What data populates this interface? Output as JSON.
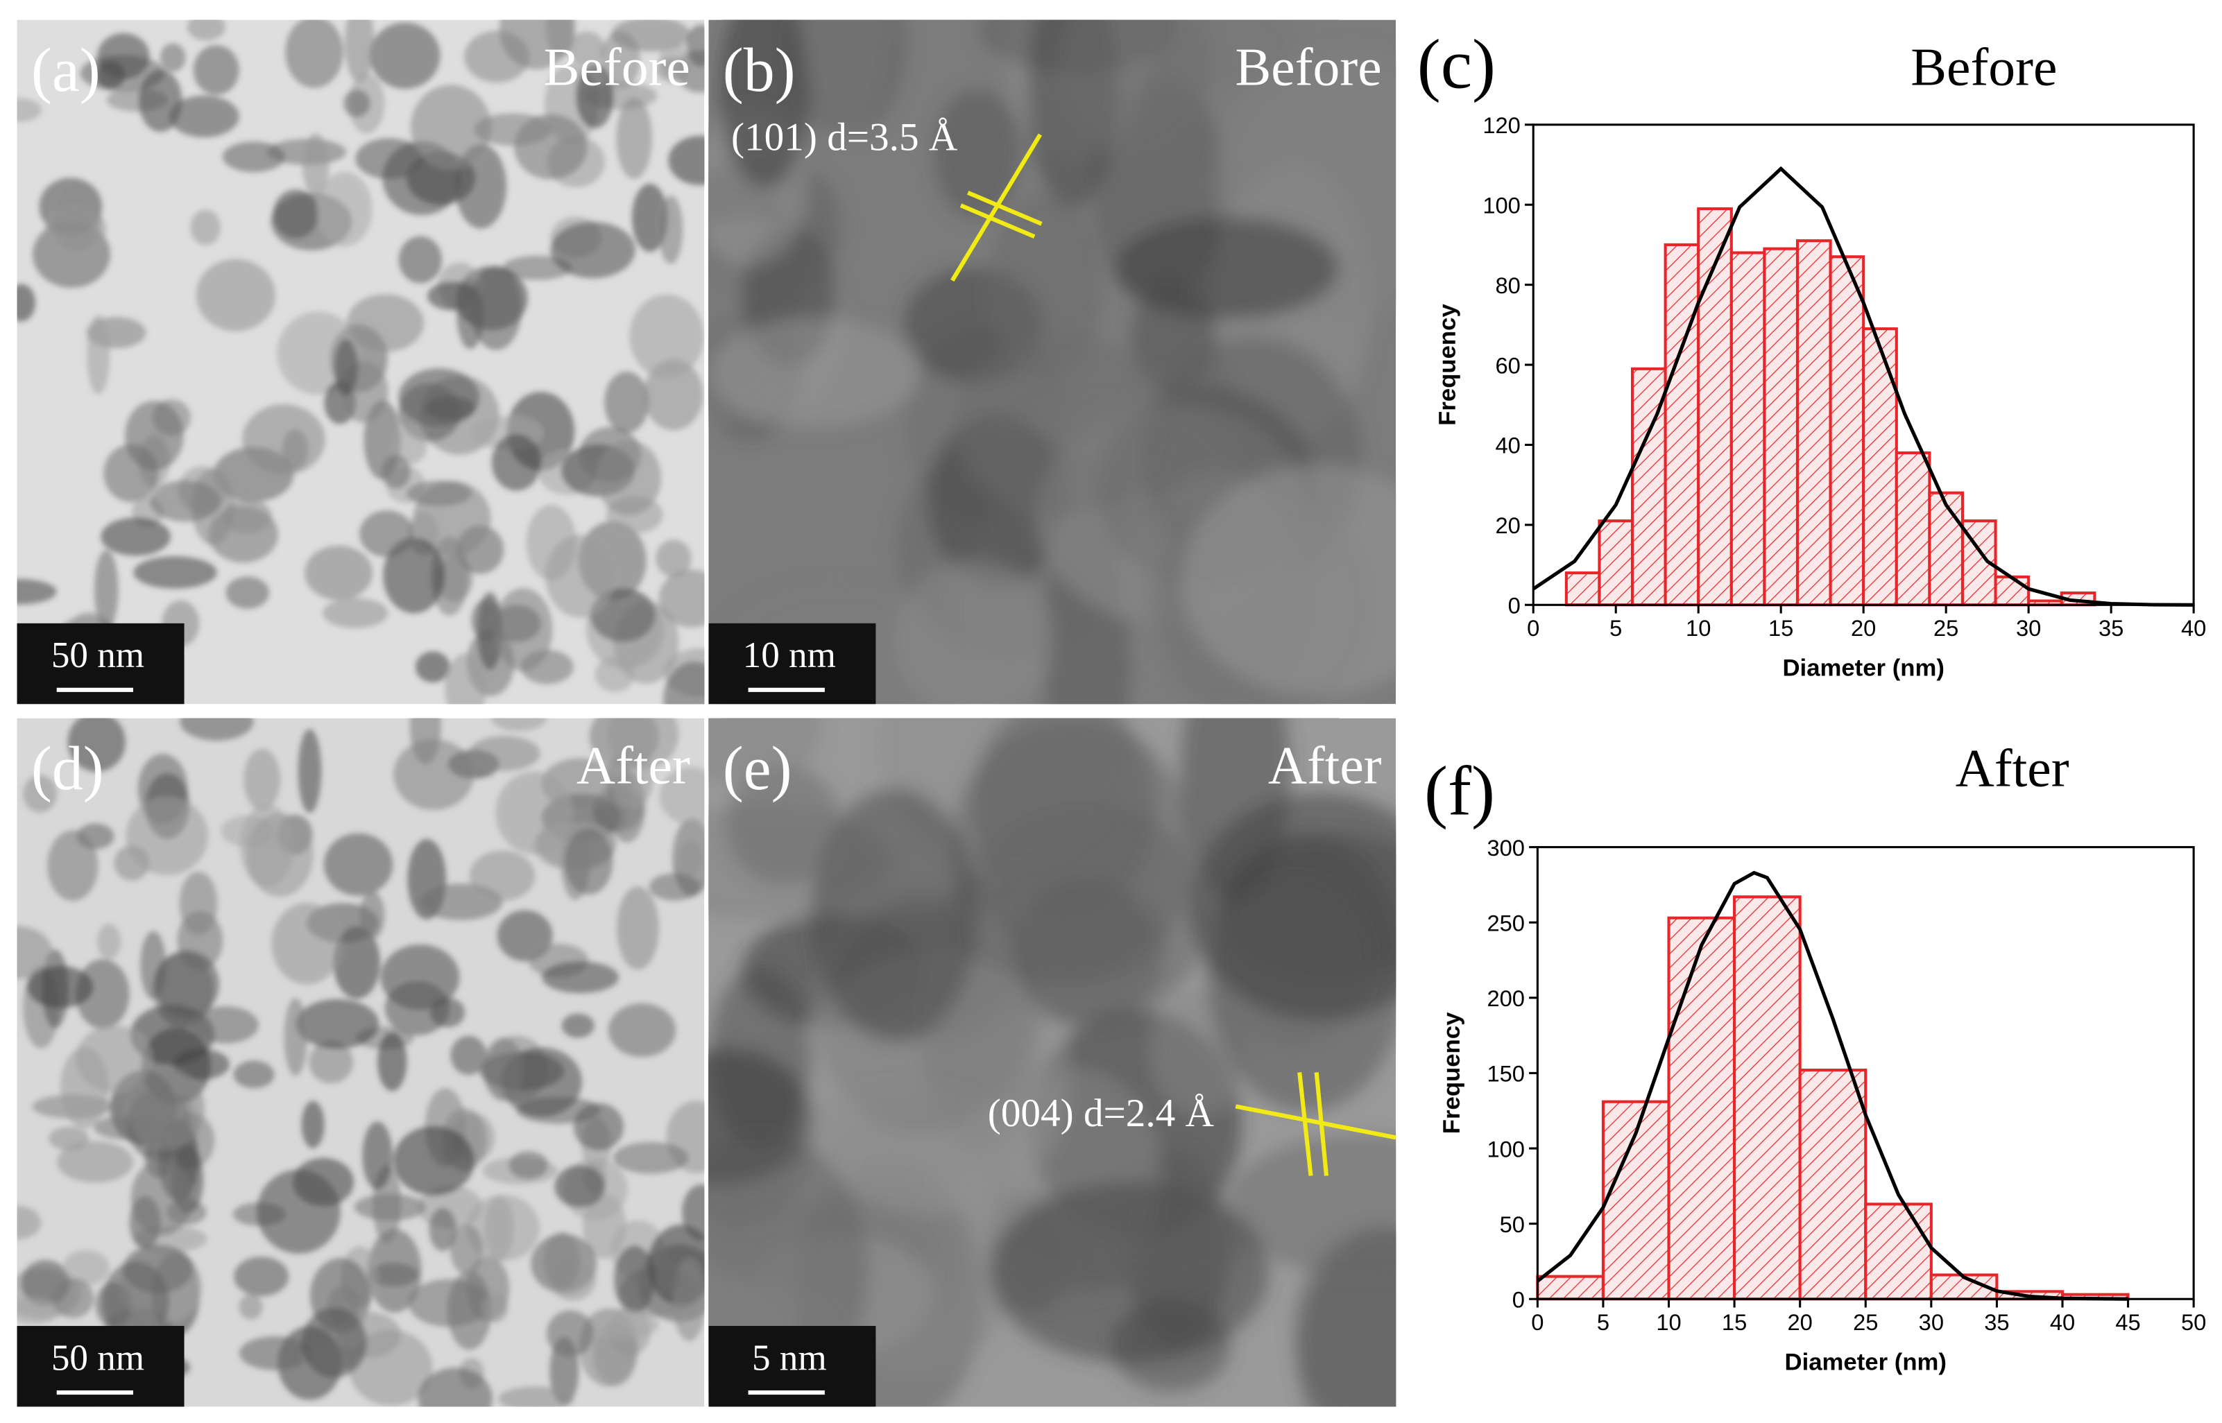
{
  "panels": [
    {
      "label": "(a)",
      "condition": "Before",
      "scale_bar": "50 nm"
    },
    {
      "label": "(b)",
      "condition": "Before",
      "scale_bar": "10 nm",
      "annotation": "(101) d=3.5 Å"
    },
    {
      "label": "(d)",
      "condition": "After",
      "scale_bar": "50 nm"
    },
    {
      "label": "(e)",
      "condition": "After",
      "scale_bar": "5 nm",
      "annotation": "(004) d=2.4 Å"
    }
  ],
  "chart_data": [
    {
      "type": "histogram",
      "label": "(c)",
      "title": "Before",
      "x_label": "Diameter (nm)",
      "y_label": "Frequency",
      "bins": [
        2,
        4,
        6,
        8,
        10,
        12,
        14,
        16,
        18,
        20,
        22,
        24,
        26,
        28,
        30,
        32,
        34
      ],
      "counts": [
        8,
        21,
        59,
        90,
        99,
        88,
        89,
        91,
        87,
        69,
        38,
        28,
        21,
        7,
        1,
        3
      ],
      "color": "#e8262a",
      "fit": {
        "x": [
          0,
          2.5,
          5,
          7.5,
          10,
          12.5,
          15,
          17.5,
          20,
          22.5,
          25,
          27.5,
          30,
          32.5,
          35,
          37.5,
          40
        ],
        "y": [
          4.0,
          10.9,
          25.0,
          47.7,
          75.5,
          99.4,
          109,
          99.4,
          75.5,
          47.7,
          25.0,
          10.9,
          4.0,
          1.2,
          0.3,
          0.05,
          0.0
        ]
      },
      "fit_color": "#000000",
      "xlim": [
        0,
        40
      ],
      "xticks": [
        0,
        5,
        10,
        15,
        20,
        25,
        30,
        35,
        40
      ],
      "ylim": [
        0,
        120
      ],
      "yticks": [
        0,
        20,
        40,
        60,
        80,
        100,
        120
      ]
    },
    {
      "type": "histogram",
      "label": "(f)",
      "title": "After",
      "x_label": "Diameter (nm)",
      "y_label": "Frequency",
      "bins": [
        0,
        5,
        10,
        15,
        20,
        25,
        30,
        35,
        40,
        45
      ],
      "counts": [
        15,
        131,
        253,
        267,
        152,
        63,
        16,
        5,
        3
      ],
      "color": "#e8262a",
      "fit": {
        "x": [
          0,
          2.5,
          5,
          7.5,
          10,
          12.5,
          15,
          16.5,
          17.5,
          20,
          22.5,
          25,
          27.5,
          30,
          32.5,
          35,
          37.5,
          40,
          45
        ],
        "y": [
          11.9,
          29.0,
          60.8,
          110.3,
          173.1,
          235.0,
          275.7,
          283,
          279.7,
          245.4,
          186.2,
          122.2,
          69.3,
          34.0,
          14.4,
          5.3,
          1.7,
          0.5,
          0.0
        ]
      },
      "fit_color": "#000000",
      "xlim": [
        0,
        50
      ],
      "xticks": [
        0,
        5,
        10,
        15,
        20,
        25,
        30,
        35,
        40,
        45,
        50
      ],
      "ylim": [
        0,
        300
      ],
      "yticks": [
        0,
        50,
        100,
        150,
        200,
        250,
        300
      ]
    }
  ]
}
